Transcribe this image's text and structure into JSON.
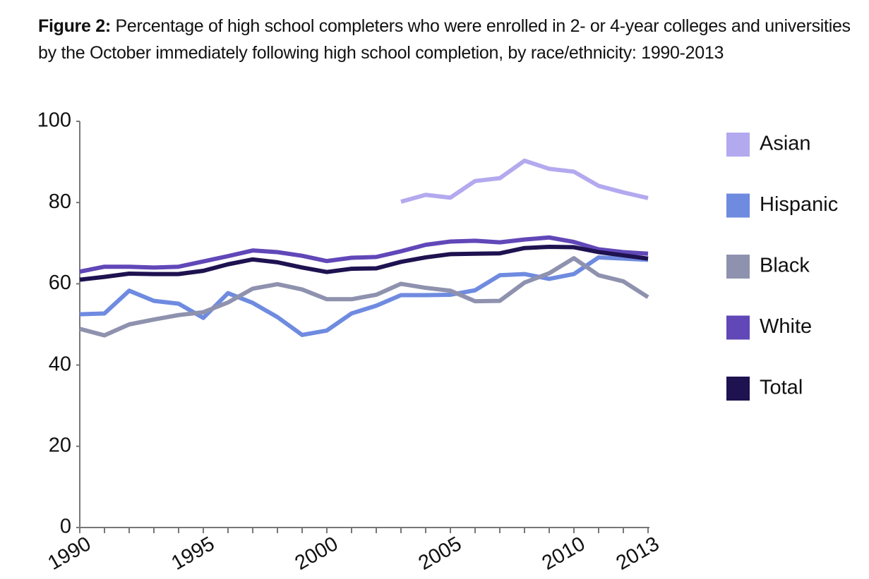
{
  "chart_data": {
    "type": "line",
    "title_prefix": "Figure 2:",
    "title": "Percentage of high school completers who were enrolled in 2- or 4-year colleges and universities by the October immediately following high school completion, by race/ethnicity: 1990-2013",
    "x": [
      1990,
      1991,
      1992,
      1993,
      1994,
      1995,
      1996,
      1997,
      1998,
      1999,
      2000,
      2001,
      2002,
      2003,
      2004,
      2005,
      2006,
      2007,
      2008,
      2009,
      2010,
      2011,
      2012,
      2013
    ],
    "xlim": [
      1990,
      2013
    ],
    "xticks": [
      1990,
      1995,
      2000,
      2005,
      2010,
      2013
    ],
    "ylim": [
      0,
      100
    ],
    "yticks": [
      0,
      20,
      40,
      60,
      80,
      100
    ],
    "series": [
      {
        "name": "Asian",
        "color": "#b3a9ef",
        "values": [
          null,
          null,
          null,
          null,
          null,
          null,
          null,
          null,
          null,
          null,
          null,
          null,
          null,
          80.2,
          81.9,
          81.2,
          85.3,
          86,
          90.3,
          88.3,
          87.6,
          84.1,
          82.5,
          81.1
        ]
      },
      {
        "name": "Hispanic",
        "color": "#6f8be0",
        "values": [
          52.5,
          52.7,
          58.3,
          55.8,
          55.1,
          51.6,
          57.7,
          55.3,
          51.8,
          47.4,
          48.5,
          52.7,
          54.6,
          57.2,
          57.2,
          57.3,
          58.4,
          62.1,
          62.4,
          61.2,
          62.4,
          66.5,
          66.2,
          65.9
        ]
      },
      {
        "name": "Black",
        "color": "#8f92ae",
        "values": [
          48.9,
          47.3,
          50,
          51.2,
          52.3,
          53,
          55.4,
          58.8,
          59.9,
          58.6,
          56.2,
          56.2,
          57.3,
          60,
          59,
          58.3,
          55.7,
          55.8,
          60.3,
          62.6,
          66.3,
          62.1,
          60.6,
          56.7
        ]
      },
      {
        "name": "White",
        "color": "#6147b8",
        "values": [
          63,
          64.2,
          64.2,
          64,
          64.2,
          65.5,
          66.8,
          68.2,
          67.8,
          66.9,
          65.6,
          66.4,
          66.6,
          68,
          69.6,
          70.4,
          70.6,
          70.2,
          70.9,
          71.4,
          70.3,
          68.5,
          67.8,
          67.4
        ]
      },
      {
        "name": "Total",
        "color": "#1e1250",
        "values": [
          61,
          61.7,
          62.5,
          62.4,
          62.4,
          63.2,
          64.8,
          66,
          65.3,
          64,
          62.9,
          63.7,
          63.8,
          65.4,
          66.5,
          67.3,
          67.4,
          67.5,
          68.8,
          69.1,
          69,
          67.8,
          67,
          66.2
        ]
      }
    ]
  }
}
